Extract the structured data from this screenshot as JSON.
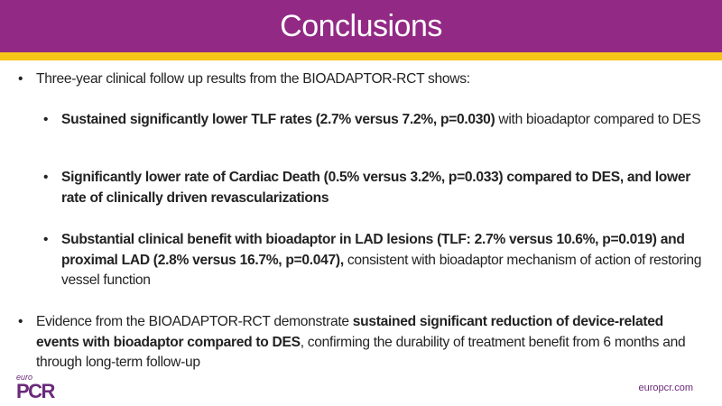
{
  "header": {
    "title": "Conclusions"
  },
  "bullets": {
    "b1": {
      "text": "Three-year clinical follow up results from the BIOADAPTOR-RCT shows:"
    },
    "s1": {
      "bold": "Sustained significantly lower TLF rates (2.7% versus 7.2%, p=0.030)",
      "rest": " with bioadaptor compared to DES"
    },
    "s2": {
      "bold": "Significantly lower rate of Cardiac Death (0.5% versus 3.2%, p=0.033) compared to DES, and lower rate of clinically driven revascularizations",
      "rest": ""
    },
    "s3": {
      "bold": "Substantial clinical benefit with bioadaptor in LAD lesions (TLF: 2.7% versus 10.6%, p=0.019) and proximal LAD (2.8% versus 16.7%, p=0.047),",
      "rest": " consistent with bioadaptor mechanism of action of restoring vessel function"
    },
    "b2": {
      "pre": "Evidence from the BIOADAPTOR-RCT demonstrate ",
      "bold": "sustained significant reduction of device-related events with bioadaptor compared to DES",
      "rest": ", confirming the durability of treatment benefit from 6 months and through long-term follow-up"
    }
  },
  "footer": {
    "logo_small": "euro",
    "logo_big": "PCR",
    "url": "europcr.com"
  },
  "colors": {
    "header": "#922985",
    "band": "#f5c518"
  }
}
